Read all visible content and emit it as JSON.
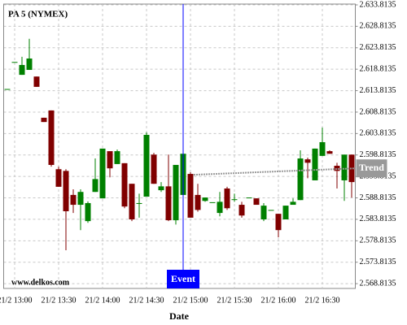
{
  "chart_data": {
    "type": "candlestick",
    "title": "PA 5 (NYMEX)",
    "watermark": "www.delkos.com",
    "x_label": "Date",
    "categories": [
      null,
      "21/2 13:00",
      null,
      null,
      null,
      null,
      null,
      "21/2 13:30",
      null,
      null,
      null,
      null,
      null,
      "21/2 14:00",
      null,
      null,
      null,
      null,
      null,
      "21/2 14:30",
      null,
      null,
      null,
      null,
      null,
      "21/2 15:00",
      null,
      null,
      null,
      null,
      null,
      "21/2 15:30",
      null,
      null,
      null,
      null,
      null,
      "21/2 16:00",
      null,
      null,
      null,
      null,
      null,
      "21/2 16:30",
      null,
      null,
      null,
      null
    ],
    "open": [
      2614.2,
      2620.5,
      2617.5,
      2618.65,
      2617.1,
      2607.5,
      2609.2,
      2595.5,
      2595.1,
      2589.5,
      2587.2,
      2583.4,
      2590.2,
      2588.7,
      2599.7,
      2596.7,
      2596.9,
      2592.1,
      2587.6,
      2589.1,
      2598.9,
      2590.6,
      2591.5,
      2583.6,
      2589.5,
      2594.4,
      2589.5,
      2588.1,
      2587.8,
      2585.3,
      2591.0,
      2588.5,
      2587.2,
      2588.9,
      2588.7,
      2583.8,
      2586.0,
      2585.1,
      2583.8,
      2587.2,
      2588.3,
      2597.8,
      2592.9,
      2598.6,
      2599.7,
      2596.3,
      2592.9,
      2598.9
    ],
    "high": [
      2614.2,
      2620.5,
      2621.7,
      2625.9,
      2617.1,
      2607.5,
      2609.2,
      2596.1,
      2595.5,
      2590.8,
      2590.8,
      2588.0,
      2598.0,
      2600.3,
      2599.7,
      2600.1,
      2596.9,
      2592.1,
      2589.8,
      2604.1,
      2599.3,
      2592.5,
      2598.9,
      2596.5,
      2599.1,
      2594.8,
      2592.1,
      2588.9,
      2587.8,
      2590.2,
      2591.4,
      2589.8,
      2587.9,
      2588.9,
      2588.7,
      2587.6,
      2586.0,
      2585.1,
      2587.0,
      2588.7,
      2599.9,
      2598.2,
      2600.3,
      2605.2,
      2599.9,
      2597.0,
      2598.9,
      2598.9
    ],
    "low": [
      2614.2,
      2620.5,
      2617.5,
      2618.65,
      2614.7,
      2606.5,
      2596.1,
      2591.4,
      2576.6,
      2585.3,
      2581.3,
      2583.0,
      2590.2,
      2588.7,
      2593.6,
      2596.7,
      2586.4,
      2583.4,
      2584.2,
      2589.1,
      2592.1,
      2590.2,
      2583.4,
      2582.6,
      2589.5,
      2584.2,
      2585.6,
      2587.9,
      2587.8,
      2584.5,
      2586.0,
      2587.9,
      2584.2,
      2588.9,
      2587.2,
      2583.4,
      2586.0,
      2579.6,
      2583.8,
      2587.2,
      2588.3,
      2593.4,
      2592.9,
      2598.6,
      2599.1,
      2591.0,
      2588.1,
      2588.9
    ],
    "close": [
      2614.2,
      2620.5,
      2619.8,
      2621.3,
      2614.7,
      2606.5,
      2596.5,
      2591.4,
      2585.7,
      2587.2,
      2590.2,
      2587.6,
      2593.2,
      2600.3,
      2595.7,
      2599.7,
      2586.8,
      2583.8,
      2587.6,
      2603.5,
      2592.1,
      2591.5,
      2583.6,
      2596.5,
      2599.1,
      2584.2,
      2586.0,
      2588.9,
      2587.8,
      2587.9,
      2586.4,
      2588.5,
      2584.7,
      2588.9,
      2587.2,
      2587.0,
      2586.0,
      2581.3,
      2587.0,
      2587.9,
      2598.0,
      2597.0,
      2600.3,
      2601.8,
      2599.1,
      2595.1,
      2598.9,
      2592.5
    ],
    "up_color": "#008000",
    "down_color": "#800000",
    "ylim": [
      2567.7,
      2634.0
    ],
    "yticks": [
      {
        "value": 2568.8135,
        "label": "2.568.8135"
      },
      {
        "value": 2573.8135,
        "label": "2.573.8135"
      },
      {
        "value": 2578.8135,
        "label": "2.578.8135"
      },
      {
        "value": 2583.8135,
        "label": "2.583.8135"
      },
      {
        "value": 2588.8135,
        "label": "2.588.8135"
      },
      {
        "value": 2593.8135,
        "label": "2.593.8135"
      },
      {
        "value": 2598.8135,
        "label": "2.598.8135"
      },
      {
        "value": 2603.8135,
        "label": "2.603.8135"
      },
      {
        "value": 2608.8135,
        "label": "2.608.8135"
      },
      {
        "value": 2613.8135,
        "label": "2.613.8135"
      },
      {
        "value": 2618.8135,
        "label": "2.618.8135"
      },
      {
        "value": 2623.8135,
        "label": "2.623.8135"
      },
      {
        "value": 2628.8135,
        "label": "2.628.8135"
      },
      {
        "value": 2633.8135,
        "label": "2.633.8135"
      }
    ],
    "grid": true,
    "event": {
      "label": "Event",
      "color": "#0000ff"
    },
    "trend": {
      "label": "Trend",
      "values": [
        2594.2,
        2595.7
      ],
      "color": "#999999"
    }
  }
}
